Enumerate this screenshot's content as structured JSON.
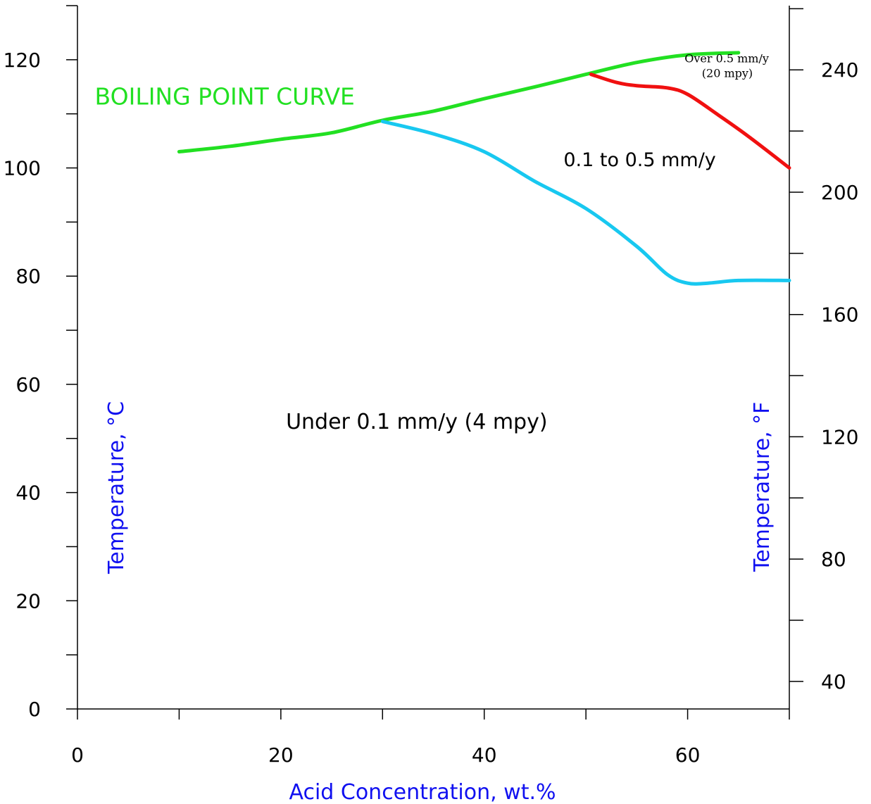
{
  "chart_data": {
    "type": "line",
    "xlabel": "Acid Concentration, wt.%",
    "ylabel": "Temperature, °C",
    "y2label": "Temperature, °F",
    "xlim": [
      0,
      70
    ],
    "ylim": [
      0,
      130
    ],
    "y2lim": [
      31,
      261
    ],
    "x_major_ticks": [
      0,
      20,
      40,
      60
    ],
    "x_minor_ticks": [
      10,
      30,
      50,
      70
    ],
    "y_major_ticks": [
      0,
      20,
      40,
      60,
      80,
      100,
      120
    ],
    "y_minor_ticks": [
      10,
      30,
      50,
      70,
      90,
      110,
      130
    ],
    "y2_major_ticks": [
      40,
      80,
      120,
      160,
      200,
      240
    ],
    "y2_minor_ticks": [
      60,
      100,
      140,
      180,
      220,
      260
    ],
    "series": [
      {
        "color": "#22e022",
        "x": [
          10,
          15,
          20,
          25,
          30,
          35,
          40,
          45,
          50,
          55,
          60,
          65
        ],
        "y": [
          103,
          104,
          105.3,
          106.5,
          108.8,
          110.5,
          112.8,
          115,
          117.3,
          119.5,
          120.9,
          121.3
        ]
      },
      {
        "color": "#18c8f0",
        "x": [
          30,
          35,
          40,
          45,
          50,
          55,
          58,
          60,
          62,
          65,
          70
        ],
        "y": [
          108.6,
          106.3,
          103,
          97.5,
          92.5,
          85.5,
          80.3,
          78.7,
          78.7,
          79.2,
          79.2
        ]
      },
      {
        "color": "#f01010",
        "x": [
          50.5,
          53,
          55,
          58,
          60,
          63,
          66,
          70
        ],
        "y": [
          117.3,
          115.8,
          115.2,
          114.8,
          113.6,
          109.8,
          105.8,
          100
        ]
      }
    ],
    "annotations": [
      {
        "text": "BOILING POINT CURVE",
        "x": 1.7,
        "y": 111.7,
        "color": "#22e022",
        "style": "boil"
      },
      {
        "text": "0.1 to 0.5 mm/y",
        "x": 47.8,
        "y": 100.3,
        "color": "#000000",
        "style": "mid"
      },
      {
        "text": "Over 0.5 mm/y",
        "x": 59.7,
        "y": 119.5,
        "color": "#000000",
        "style": "small"
      },
      {
        "text": "(20 mpy)",
        "x": 61.4,
        "y": 116.8,
        "color": "#000000",
        "style": "small"
      },
      {
        "text": "Under 0.1 mm/y (4 mpy)",
        "x": 20.5,
        "y": 51.8,
        "color": "#000000",
        "style": "big"
      }
    ],
    "label_colors": {
      "axis_titles": "#1010f0",
      "axes": "#000000"
    }
  }
}
